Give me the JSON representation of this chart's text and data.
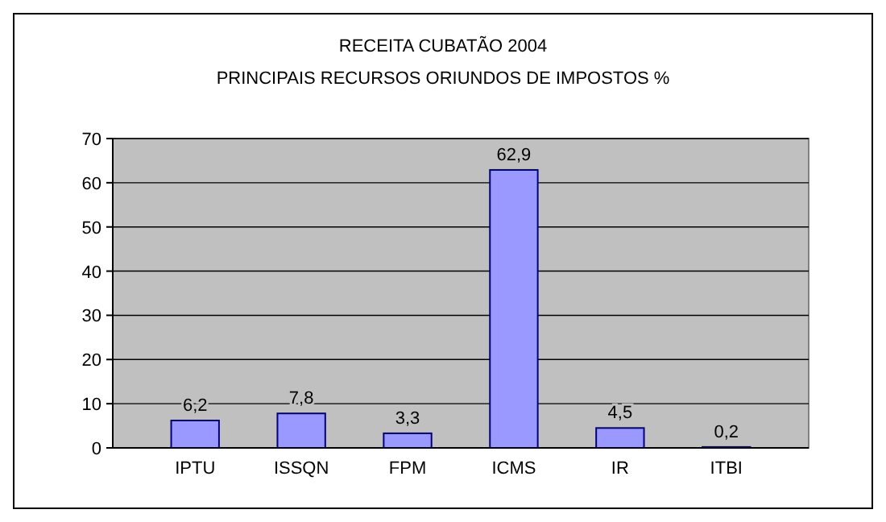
{
  "chart_data": {
    "type": "bar",
    "title": "RECEITA CUBATÃO 2004",
    "subtitle": "PRINCIPAIS RECURSOS ORIUNDOS DE IMPOSTOS %",
    "categories": [
      "IPTU",
      "ISSQN",
      "FPM",
      "ICMS",
      "IR",
      "ITBI"
    ],
    "values": [
      6.2,
      7.8,
      3.3,
      62.9,
      4.5,
      0.2
    ],
    "value_labels": [
      "6,2",
      "7,8",
      "3,3",
      "62,9",
      "4,5",
      "0,2"
    ],
    "color": "#9999ff",
    "ylim": [
      0,
      70
    ],
    "yticks": [
      0,
      10,
      20,
      30,
      40,
      50,
      60,
      70
    ],
    "grid": "y"
  }
}
